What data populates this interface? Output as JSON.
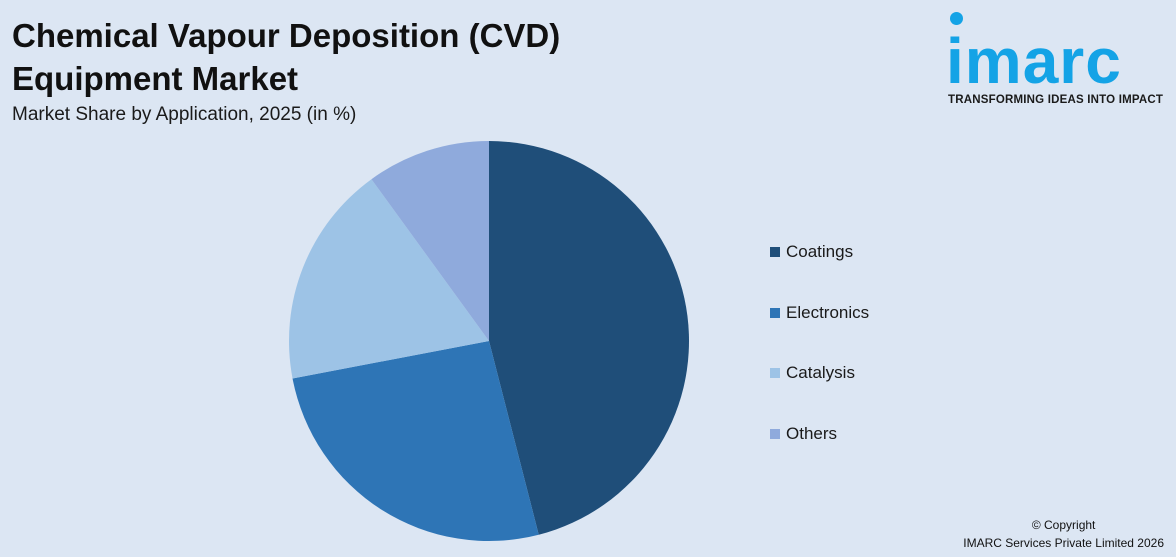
{
  "header": {
    "title": "Chemical Vapour Deposition (CVD) Equipment Market",
    "subtitle": "Market Share by Application, 2025 (in %)"
  },
  "logo": {
    "wordmark": "imarc",
    "tagline": "TRANSFORMING IDEAS INTO IMPACT",
    "color": "#14a3e6"
  },
  "chart_data": {
    "type": "pie",
    "categories": [
      "Coatings",
      "Electronics",
      "Catalysis",
      "Others"
    ],
    "values": [
      46,
      26,
      18,
      10
    ],
    "colors": [
      "#1f4e79",
      "#2e75b6",
      "#9dc3e6",
      "#8faadc"
    ],
    "legend_position": "right"
  },
  "footer": {
    "copyright_line1": "© Copyright",
    "copyright_line2": "IMARC Services Private Limited 2026"
  }
}
